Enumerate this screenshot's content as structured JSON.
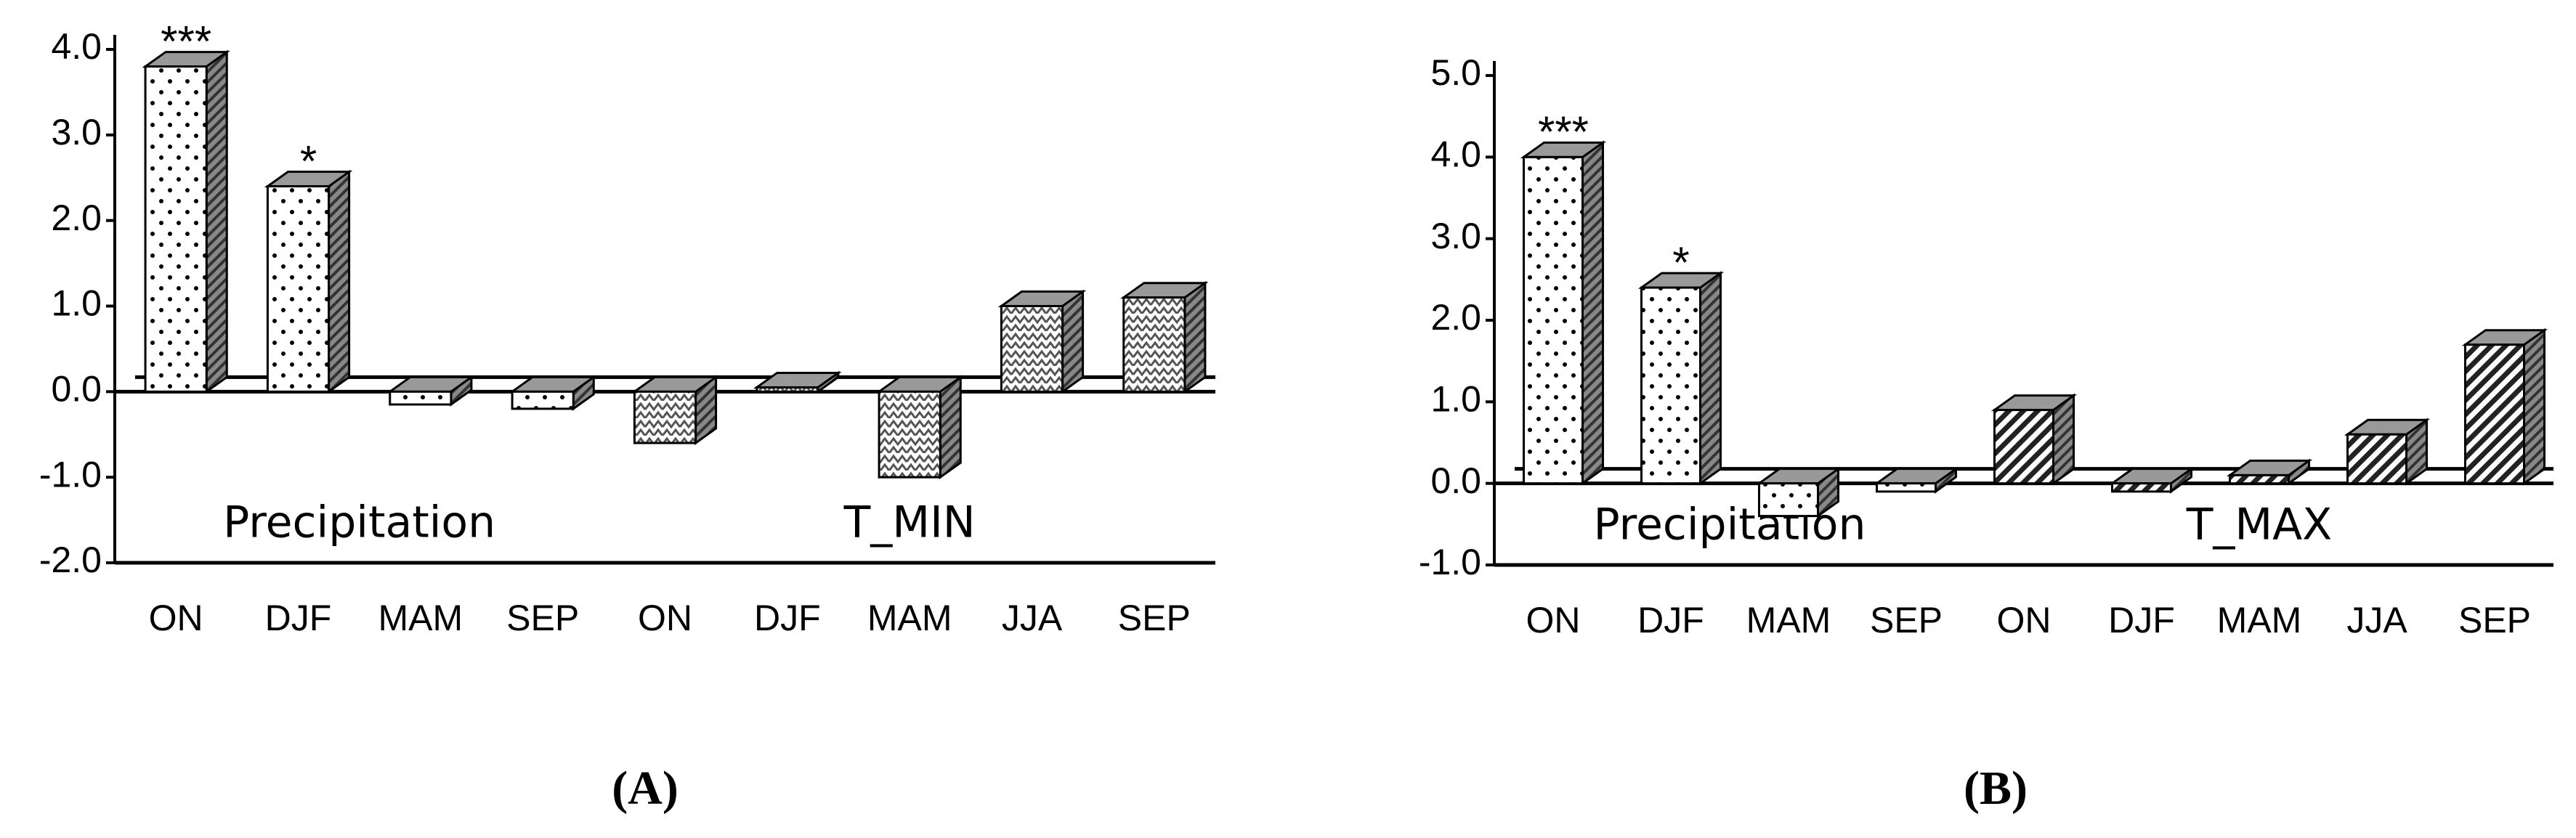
{
  "chart_data": [
    {
      "type": "bar",
      "panel": "(A)",
      "ylim": [
        -2,
        4
      ],
      "yticks": [
        {
          "value": -2,
          "label": "-2.0"
        },
        {
          "value": -1,
          "label": "-1.0"
        },
        {
          "value": 0,
          "label": "0.0"
        },
        {
          "value": 1,
          "label": "1.0"
        },
        {
          "value": 2,
          "label": "2.0"
        },
        {
          "value": 3,
          "label": "3.0"
        },
        {
          "value": 4,
          "label": "4.0"
        }
      ],
      "groups": [
        {
          "name": "Precipitation",
          "pattern": "dots",
          "categories": [
            "ON",
            "DJF",
            "MAM",
            "SEP"
          ],
          "values": [
            3.8,
            2.4,
            -0.15,
            -0.2
          ],
          "significance": [
            "***",
            "*",
            null,
            null
          ]
        },
        {
          "name": "T_MIN",
          "pattern": "zigzag",
          "categories": [
            "ON",
            "DJF",
            "MAM",
            "JJA",
            "SEP"
          ],
          "values": [
            -0.6,
            0.05,
            -1.0,
            1.0,
            1.1
          ],
          "significance": [
            null,
            null,
            null,
            null,
            null
          ]
        }
      ]
    },
    {
      "type": "bar",
      "panel": "(B)",
      "ylim": [
        -1,
        5
      ],
      "yticks": [
        {
          "value": -1,
          "label": "-1.0"
        },
        {
          "value": 0,
          "label": "0.0"
        },
        {
          "value": 1,
          "label": "1.0"
        },
        {
          "value": 2,
          "label": "2.0"
        },
        {
          "value": 3,
          "label": "3.0"
        },
        {
          "value": 4,
          "label": "4.0"
        },
        {
          "value": 5,
          "label": "5.0"
        }
      ],
      "groups": [
        {
          "name": "Precipitation",
          "pattern": "dots",
          "categories": [
            "ON",
            "DJF",
            "MAM",
            "SEP"
          ],
          "values": [
            4.0,
            2.4,
            -0.4,
            -0.1
          ],
          "significance": [
            "***",
            "*",
            null,
            null
          ]
        },
        {
          "name": "T_MAX",
          "pattern": "hatch",
          "categories": [
            "ON",
            "DJF",
            "MAM",
            "JJA",
            "SEP"
          ],
          "values": [
            0.9,
            -0.1,
            0.1,
            0.6,
            1.7
          ],
          "significance": [
            null,
            null,
            null,
            null,
            null
          ]
        }
      ]
    }
  ]
}
